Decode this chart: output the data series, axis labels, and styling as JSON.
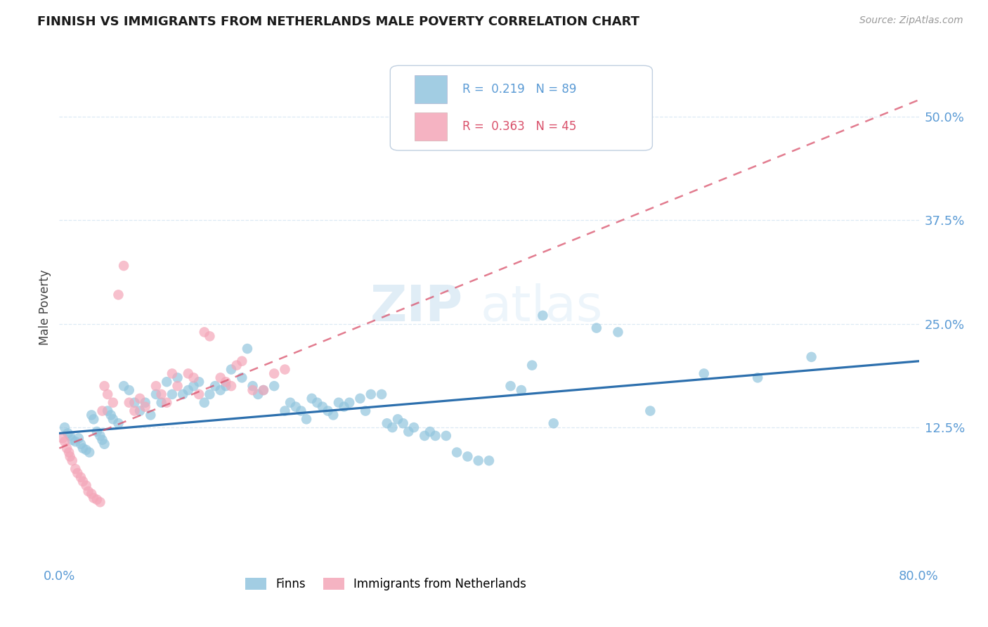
{
  "title": "FINNISH VS IMMIGRANTS FROM NETHERLANDS MALE POVERTY CORRELATION CHART",
  "source": "Source: ZipAtlas.com",
  "ylabel": "Male Poverty",
  "ytick_labels": [
    "50.0%",
    "37.5%",
    "25.0%",
    "12.5%"
  ],
  "ytick_values": [
    0.5,
    0.375,
    0.25,
    0.125
  ],
  "xlim": [
    0.0,
    0.8
  ],
  "ylim": [
    -0.04,
    0.58
  ],
  "finn_color": "#92c5de",
  "immigrant_color": "#f4a6b8",
  "finn_line_color": "#2c6fad",
  "immigrant_line_color": "#d9506a",
  "background_color": "#ffffff",
  "watermark_zip": "ZIP",
  "watermark_atlas": "atlas",
  "grid_color": "#dce9f5",
  "tick_color": "#5b9bd5",
  "finn_line_start_y": 0.118,
  "finn_line_end_y": 0.205,
  "imm_line_start_y": 0.1,
  "imm_line_end_y": 0.52,
  "finn_scatter_x": [
    0.005,
    0.008,
    0.01,
    0.012,
    0.015,
    0.018,
    0.02,
    0.022,
    0.025,
    0.028,
    0.03,
    0.032,
    0.035,
    0.038,
    0.04,
    0.042,
    0.045,
    0.048,
    0.05,
    0.055,
    0.06,
    0.065,
    0.07,
    0.075,
    0.08,
    0.085,
    0.09,
    0.095,
    0.1,
    0.105,
    0.11,
    0.115,
    0.12,
    0.125,
    0.13,
    0.135,
    0.14,
    0.145,
    0.15,
    0.155,
    0.16,
    0.17,
    0.175,
    0.18,
    0.185,
    0.19,
    0.2,
    0.21,
    0.215,
    0.22,
    0.225,
    0.23,
    0.235,
    0.24,
    0.245,
    0.25,
    0.255,
    0.26,
    0.265,
    0.27,
    0.28,
    0.285,
    0.29,
    0.3,
    0.305,
    0.31,
    0.315,
    0.32,
    0.325,
    0.33,
    0.34,
    0.345,
    0.35,
    0.36,
    0.37,
    0.38,
    0.39,
    0.4,
    0.42,
    0.43,
    0.44,
    0.45,
    0.46,
    0.5,
    0.52,
    0.55,
    0.6,
    0.65,
    0.7
  ],
  "finn_scatter_y": [
    0.125,
    0.118,
    0.115,
    0.11,
    0.108,
    0.112,
    0.105,
    0.1,
    0.098,
    0.095,
    0.14,
    0.135,
    0.12,
    0.115,
    0.11,
    0.105,
    0.145,
    0.14,
    0.135,
    0.13,
    0.175,
    0.17,
    0.155,
    0.145,
    0.155,
    0.14,
    0.165,
    0.155,
    0.18,
    0.165,
    0.185,
    0.165,
    0.17,
    0.175,
    0.18,
    0.155,
    0.165,
    0.175,
    0.17,
    0.175,
    0.195,
    0.185,
    0.22,
    0.175,
    0.165,
    0.17,
    0.175,
    0.145,
    0.155,
    0.15,
    0.145,
    0.135,
    0.16,
    0.155,
    0.15,
    0.145,
    0.14,
    0.155,
    0.15,
    0.155,
    0.16,
    0.145,
    0.165,
    0.165,
    0.13,
    0.125,
    0.135,
    0.13,
    0.12,
    0.125,
    0.115,
    0.12,
    0.115,
    0.115,
    0.095,
    0.09,
    0.085,
    0.085,
    0.175,
    0.17,
    0.2,
    0.26,
    0.13,
    0.245,
    0.24,
    0.145,
    0.19,
    0.185,
    0.21
  ],
  "imm_scatter_x": [
    0.003,
    0.005,
    0.007,
    0.009,
    0.01,
    0.012,
    0.015,
    0.017,
    0.02,
    0.022,
    0.025,
    0.027,
    0.03,
    0.032,
    0.035,
    0.038,
    0.04,
    0.042,
    0.045,
    0.05,
    0.055,
    0.06,
    0.065,
    0.07,
    0.075,
    0.08,
    0.09,
    0.095,
    0.1,
    0.105,
    0.11,
    0.12,
    0.125,
    0.13,
    0.135,
    0.14,
    0.15,
    0.155,
    0.16,
    0.165,
    0.17,
    0.18,
    0.19,
    0.2,
    0.21
  ],
  "imm_scatter_y": [
    0.112,
    0.108,
    0.1,
    0.095,
    0.09,
    0.085,
    0.075,
    0.07,
    0.065,
    0.06,
    0.055,
    0.048,
    0.045,
    0.04,
    0.038,
    0.035,
    0.145,
    0.175,
    0.165,
    0.155,
    0.285,
    0.32,
    0.155,
    0.145,
    0.16,
    0.15,
    0.175,
    0.165,
    0.155,
    0.19,
    0.175,
    0.19,
    0.185,
    0.165,
    0.24,
    0.235,
    0.185,
    0.18,
    0.175,
    0.2,
    0.205,
    0.17,
    0.17,
    0.19,
    0.195
  ]
}
